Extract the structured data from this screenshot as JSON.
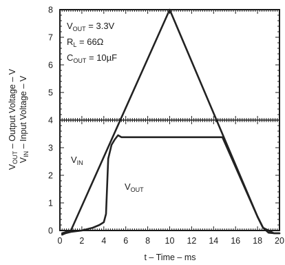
{
  "chart_data": {
    "type": "line",
    "title": "",
    "xlabel": "t – Time – ms",
    "ylabel_line1": "V_OUT – Output Voltage – V",
    "ylabel_line2": "V_IN – Input Voltage – V",
    "xlim": [
      0,
      20
    ],
    "ylim": [
      0,
      8
    ],
    "xticks": [
      0,
      2,
      4,
      6,
      8,
      10,
      12,
      14,
      16,
      18,
      20
    ],
    "yticks": [
      0,
      1,
      2,
      3,
      4,
      5,
      6,
      7,
      8
    ],
    "grid": false,
    "frame_midline_y": 4,
    "annotations": [
      {
        "text": "V_OUT = 3.3V"
      },
      {
        "text": "R_L = 66Ω"
      },
      {
        "text": "C_OUT = 10µF"
      }
    ],
    "series": [
      {
        "name": "V_IN",
        "x": [
          0.2,
          1.0,
          10.0,
          18.0,
          18.5,
          19.5,
          20.0
        ],
        "y": [
          -0.1,
          0.0,
          8.0,
          0.5,
          0.1,
          -0.1,
          -0.1
        ]
      },
      {
        "name": "V_OUT",
        "x": [
          0.2,
          0.5,
          1.0,
          2.0,
          3.0,
          3.6,
          4.0,
          4.2,
          4.4,
          4.7,
          5.0,
          5.3,
          5.6,
          6.0,
          8.0,
          10.0,
          12.0,
          14.0,
          14.8,
          16.0,
          17.0,
          18.0,
          18.5,
          19.0,
          19.5,
          20.0
        ],
        "y": [
          -0.15,
          -0.1,
          -0.05,
          0.0,
          0.1,
          0.2,
          0.3,
          0.6,
          2.6,
          3.1,
          3.3,
          3.45,
          3.38,
          3.38,
          3.38,
          3.38,
          3.38,
          3.38,
          3.38,
          2.3,
          1.4,
          0.5,
          0.1,
          -0.08,
          -0.1,
          -0.1
        ]
      }
    ],
    "curve_labels": {
      "vin": {
        "main": "V",
        "sub": "IN"
      },
      "vout": {
        "main": "V",
        "sub": "OUT"
      }
    }
  }
}
